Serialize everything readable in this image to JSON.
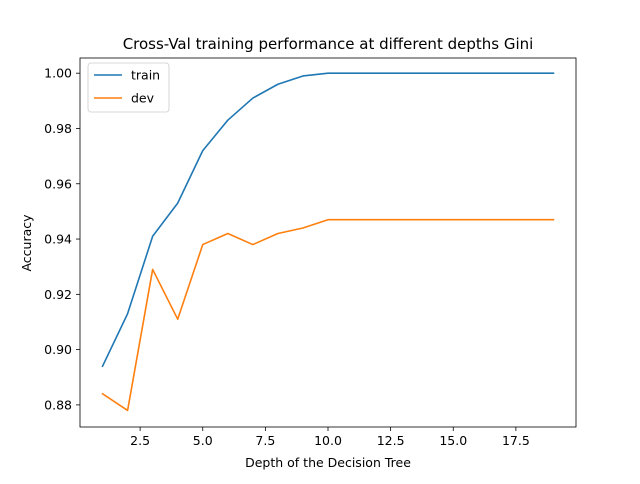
{
  "chart_data": {
    "type": "line",
    "title": "Cross-Val training performance at different depths Gini",
    "xlabel": "Depth of the Decision Tree",
    "ylabel": "Accuracy",
    "xlim": [
      0.1,
      19.9
    ],
    "ylim": [
      0.872,
      1.0055
    ],
    "xticks": [
      2.5,
      5.0,
      7.5,
      10.0,
      12.5,
      15.0,
      17.5
    ],
    "xtick_labels": [
      "2.5",
      "5.0",
      "7.5",
      "10.0",
      "12.5",
      "15.0",
      "17.5"
    ],
    "yticks": [
      0.88,
      0.9,
      0.92,
      0.94,
      0.96,
      0.98,
      1.0
    ],
    "ytick_labels": [
      "0.88",
      "0.90",
      "0.92",
      "0.94",
      "0.96",
      "0.98",
      "1.00"
    ],
    "grid": false,
    "legend": "upper-left",
    "x": [
      1,
      2,
      3,
      4,
      5,
      6,
      7,
      8,
      9,
      10,
      11,
      12,
      13,
      14,
      15,
      16,
      17,
      18,
      19
    ],
    "series": [
      {
        "name": "train",
        "color": "#1f77b4",
        "values": [
          0.894,
          0.913,
          0.941,
          0.953,
          0.972,
          0.983,
          0.991,
          0.996,
          0.999,
          1.0,
          1.0,
          1.0,
          1.0,
          1.0,
          1.0,
          1.0,
          1.0,
          1.0,
          1.0
        ]
      },
      {
        "name": "dev",
        "color": "#ff7f0e",
        "values": [
          0.884,
          0.878,
          0.929,
          0.911,
          0.938,
          0.942,
          0.938,
          0.942,
          0.944,
          0.947,
          0.947,
          0.947,
          0.947,
          0.947,
          0.947,
          0.947,
          0.947,
          0.947,
          0.947
        ]
      }
    ]
  }
}
